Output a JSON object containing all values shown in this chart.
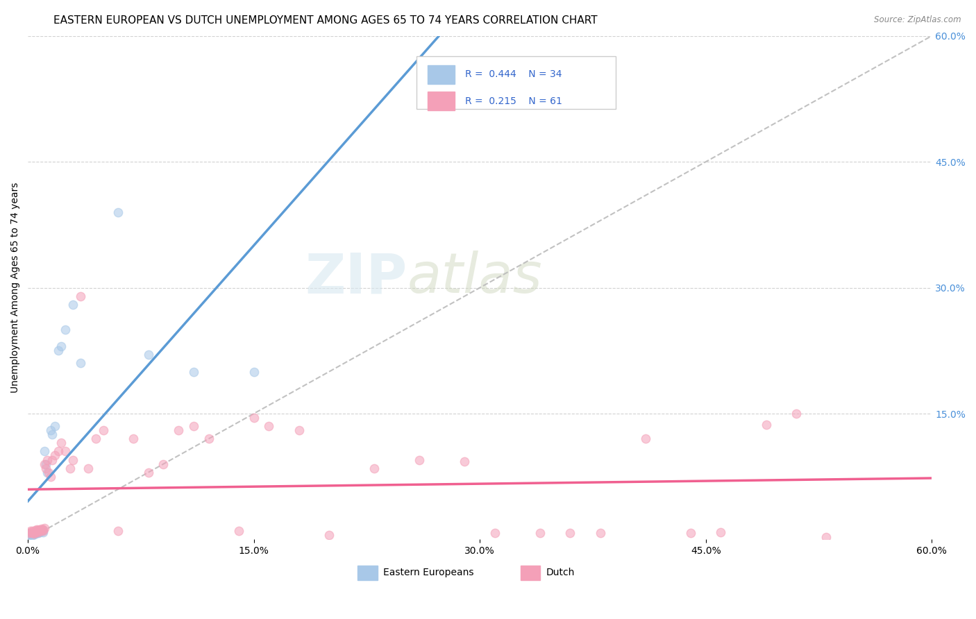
{
  "title": "EASTERN EUROPEAN VS DUTCH UNEMPLOYMENT AMONG AGES 65 TO 74 YEARS CORRELATION CHART",
  "source": "Source: ZipAtlas.com",
  "ylabel": "Unemployment Among Ages 65 to 74 years",
  "xlim": [
    0.0,
    0.6
  ],
  "ylim": [
    0.0,
    0.6
  ],
  "xtick_labels": [
    "0.0%",
    "15.0%",
    "30.0%",
    "45.0%",
    "60.0%"
  ],
  "xtick_vals": [
    0.0,
    0.15,
    0.3,
    0.45,
    0.6
  ],
  "ytick_labels_right": [
    "60.0%",
    "45.0%",
    "30.0%",
    "15.0%"
  ],
  "ytick_vals_right": [
    0.6,
    0.45,
    0.3,
    0.15
  ],
  "watermark_zip": "ZIP",
  "watermark_atlas": "atlas",
  "background_color": "#ffffff",
  "grid_color": "#cccccc",
  "title_fontsize": 11,
  "axis_label_fontsize": 10,
  "tick_fontsize": 10,
  "scatter_size": 80,
  "scatter_alpha": 0.55,
  "line_color_eastern": "#5b9bd5",
  "line_color_dutch": "#f06090",
  "dashed_line_color": "#bbbbbb",
  "ee_scatter_color": "#a8c8e8",
  "du_scatter_color": "#f4a0b8",
  "ee_x": [
    0.001,
    0.002,
    0.002,
    0.003,
    0.003,
    0.004,
    0.004,
    0.005,
    0.005,
    0.006,
    0.006,
    0.007,
    0.007,
    0.008,
    0.008,
    0.009,
    0.009,
    0.01,
    0.01,
    0.011,
    0.012,
    0.013,
    0.015,
    0.016,
    0.018,
    0.02,
    0.022,
    0.025,
    0.03,
    0.035,
    0.06,
    0.08,
    0.11,
    0.15
  ],
  "ee_y": [
    0.005,
    0.006,
    0.008,
    0.005,
    0.007,
    0.006,
    0.008,
    0.007,
    0.009,
    0.008,
    0.009,
    0.008,
    0.01,
    0.009,
    0.01,
    0.01,
    0.011,
    0.009,
    0.011,
    0.105,
    0.09,
    0.08,
    0.13,
    0.125,
    0.135,
    0.225,
    0.23,
    0.25,
    0.28,
    0.21,
    0.39,
    0.22,
    0.2,
    0.2
  ],
  "du_x": [
    0.001,
    0.002,
    0.002,
    0.003,
    0.003,
    0.004,
    0.004,
    0.005,
    0.005,
    0.006,
    0.006,
    0.007,
    0.007,
    0.008,
    0.008,
    0.009,
    0.009,
    0.01,
    0.01,
    0.011,
    0.011,
    0.012,
    0.013,
    0.014,
    0.015,
    0.016,
    0.018,
    0.02,
    0.022,
    0.025,
    0.028,
    0.03,
    0.035,
    0.04,
    0.045,
    0.05,
    0.06,
    0.07,
    0.08,
    0.09,
    0.1,
    0.11,
    0.12,
    0.14,
    0.15,
    0.16,
    0.18,
    0.2,
    0.23,
    0.26,
    0.29,
    0.31,
    0.34,
    0.36,
    0.38,
    0.41,
    0.44,
    0.46,
    0.49,
    0.51,
    0.53
  ],
  "du_y": [
    0.008,
    0.01,
    0.009,
    0.008,
    0.01,
    0.009,
    0.007,
    0.009,
    0.011,
    0.01,
    0.012,
    0.009,
    0.011,
    0.01,
    0.012,
    0.011,
    0.013,
    0.01,
    0.012,
    0.014,
    0.09,
    0.085,
    0.095,
    0.08,
    0.075,
    0.095,
    0.1,
    0.105,
    0.115,
    0.105,
    0.085,
    0.095,
    0.29,
    0.085,
    0.12,
    0.13,
    0.01,
    0.12,
    0.08,
    0.09,
    0.13,
    0.135,
    0.12,
    0.01,
    0.145,
    0.135,
    0.13,
    0.005,
    0.085,
    0.095,
    0.093,
    0.008,
    0.008,
    0.008,
    0.008,
    0.12,
    0.008,
    0.009,
    0.137,
    0.15,
    0.003
  ]
}
